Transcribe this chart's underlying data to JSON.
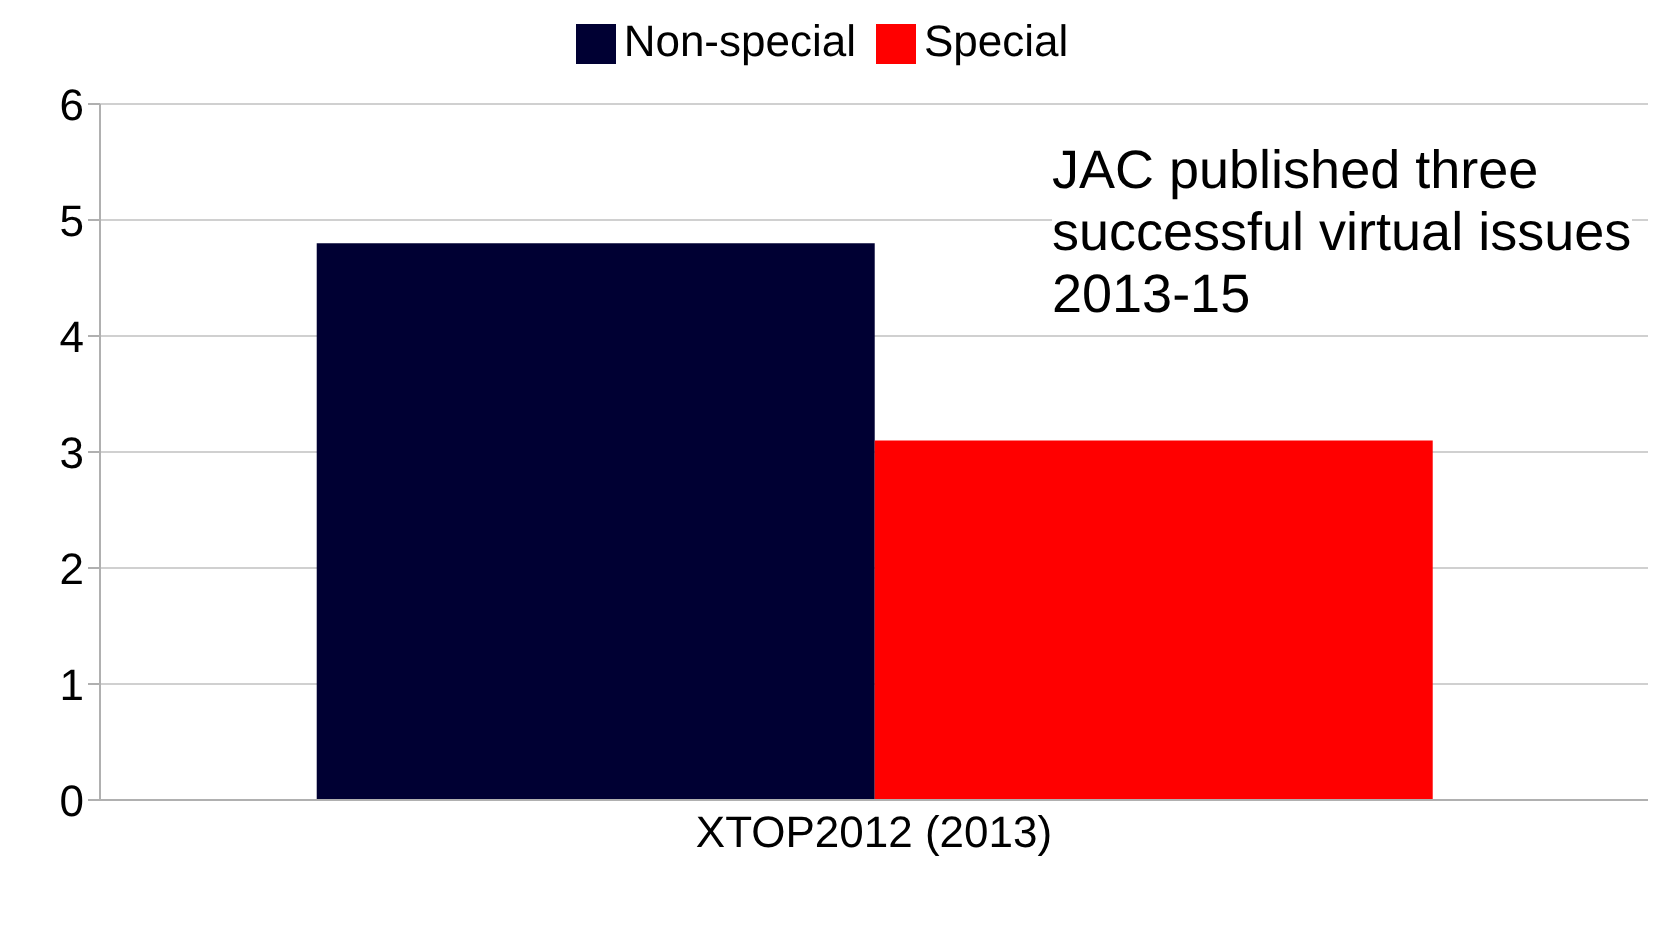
{
  "chart_data": {
    "type": "bar",
    "categories": [
      "XTOP2012 (2013)"
    ],
    "series": [
      {
        "name": "Non-special",
        "color": "#000033",
        "values": [
          4.8
        ]
      },
      {
        "name": "Special",
        "color": "#ff0000",
        "values": [
          3.1
        ]
      }
    ],
    "ylim": [
      0,
      6
    ],
    "yticks": [
      0,
      1,
      2,
      3,
      4,
      5,
      6
    ],
    "grid": "y",
    "legend": "top",
    "annotations": [
      "JAC published three successful virtual issues 2013-15"
    ]
  }
}
